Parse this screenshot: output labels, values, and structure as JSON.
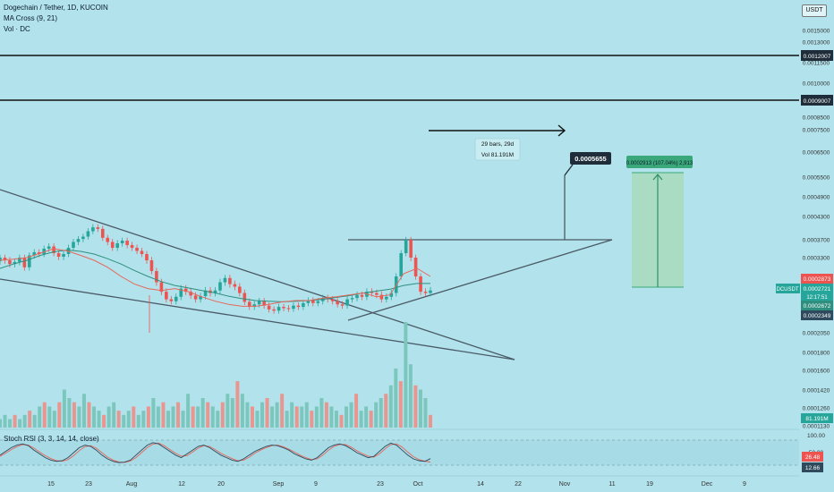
{
  "header": {
    "symbol_line": "Dogechain / Tether, 1D, KUCOIN",
    "ma_line": "MA Cross (9, 21)",
    "vol_line": "Vol · DC"
  },
  "currency": "USDT",
  "stoch_label": "Stoch RSI (3, 3, 14, 14, close)",
  "price_axis": {
    "ticks": [
      "0.0015000",
      "0.0013000",
      "0.0011500",
      "0.0010000",
      "0.0008500",
      "0.0007500",
      "0.0006500",
      "0.0005500",
      "0.0004900",
      "0.0004300",
      "0.0003700",
      "0.0003300",
      "0.0002900",
      "0.0002050",
      "0.0001800",
      "0.0001600",
      "0.0001420",
      "0.0001260",
      "0.0001130"
    ],
    "labels": {
      "level_high": "0.0012007",
      "level_mid": "0.0009007",
      "red_price": "0.0002873",
      "symbol": "DCUSDT",
      "last_price": "0.0002721",
      "countdown": "12:17:51",
      "green_price": "0.0002672",
      "dark_price": "0.0002349",
      "volume": "81.191M"
    }
  },
  "stoch_axis": {
    "ticks": [
      "100.00",
      "50.00"
    ],
    "k_value": "26.48",
    "d_value": "12.66"
  },
  "time_axis": [
    "15",
    "23",
    "Aug",
    "12",
    "20",
    "Sep",
    "9",
    "23",
    "Oct",
    "14",
    "22",
    "Nov",
    "11",
    "19",
    "Dec",
    "9"
  ],
  "annotations": {
    "measure_line1": "29 bars, 29d",
    "measure_line2": "Vol 81.191M",
    "target_label": "0.0005655",
    "projection_label": "0.0002913 (107.04%) 2,913"
  },
  "colors": {
    "background": "#b2e3ec",
    "up": "#26a69a",
    "down": "#ef5350",
    "ma_fast": "#e8665a",
    "ma_slow": "#2e8f7e",
    "line": "#37474f",
    "projection_fill": "#a6d9b8",
    "projection_line": "#3aa87a"
  },
  "chart_data": {
    "type": "candlestick",
    "title": "Dogechain / Tether, 1D, KUCOIN",
    "x_labels": [
      "15",
      "23",
      "Aug",
      "12",
      "20",
      "Sep",
      "9",
      "23",
      "Oct"
    ],
    "close_series": [
      0.00033,
      0.000325,
      0.000318,
      0.000322,
      0.00033,
      0.000312,
      0.000335,
      0.000342,
      0.000338,
      0.00035,
      0.000355,
      0.00034,
      0.000332,
      0.000338,
      0.000352,
      0.000365,
      0.000372,
      0.000378,
      0.000392,
      0.000402,
      0.000398,
      0.000375,
      0.000365,
      0.000352,
      0.000362,
      0.000368,
      0.000358,
      0.000352,
      0.000345,
      0.000338,
      0.000325,
      0.000305,
      0.000285,
      0.00027,
      0.000258,
      0.000255,
      0.000262,
      0.000275,
      0.00027,
      0.000264,
      0.000258,
      0.000263,
      0.000272,
      0.000268,
      0.000272,
      0.000285,
      0.000292,
      0.000282,
      0.000278,
      0.000268,
      0.000254,
      0.000246,
      0.00025,
      0.000255,
      0.000248,
      0.000242,
      0.00024,
      0.000246,
      0.000244,
      0.000243,
      0.000248,
      0.000246,
      0.000252,
      0.000256,
      0.000252,
      0.000255,
      0.00026,
      0.000258,
      0.000255,
      0.00025,
      0.000248,
      0.000258,
      0.00026,
      0.000265,
      0.000262,
      0.00027,
      0.000268,
      0.000265,
      0.000258,
      0.000262,
      0.000268,
      0.000295,
      0.00034,
      0.00037,
      0.00033,
      0.000295,
      0.00027,
      0.000268,
      0.000272
    ],
    "ma_fast": [
      0.000325,
      0.000327,
      0.00033,
      0.00034,
      0.00035,
      0.000345,
      0.000335,
      0.000325,
      0.000312,
      0.000295,
      0.000282,
      0.000275,
      0.000272,
      0.000275,
      0.00027,
      0.000262,
      0.000255,
      0.00025,
      0.000247,
      0.000247,
      0.00025,
      0.000254,
      0.000256,
      0.000256,
      0.00026,
      0.000262,
      0.000265,
      0.000268,
      0.000262,
      0.000265,
      0.0003,
      0.00031,
      0.000295
    ],
    "ma_slow": [
      0.00031,
      0.000318,
      0.000325,
      0.000335,
      0.000343,
      0.000347,
      0.000344,
      0.000338,
      0.000328,
      0.000318,
      0.000306,
      0.000295,
      0.000286,
      0.00028,
      0.000276,
      0.000272,
      0.000268,
      0.000263,
      0.000259,
      0.000256,
      0.000255,
      0.000254,
      0.000255,
      0.000256,
      0.000258,
      0.000261,
      0.000264,
      0.000268,
      0.000271,
      0.000274,
      0.00028,
      0.000283,
      0.000283
    ],
    "volume_series": [
      2,
      3,
      2,
      3,
      2,
      3,
      4,
      3,
      5,
      6,
      5,
      4,
      6,
      9,
      7,
      6,
      5,
      8,
      6,
      5,
      4,
      3,
      5,
      6,
      4,
      3,
      4,
      5,
      3,
      4,
      5,
      7,
      5,
      6,
      4,
      5,
      6,
      4,
      8,
      5,
      5,
      7,
      6,
      5,
      4,
      6,
      8,
      7,
      11,
      8,
      6,
      5,
      4,
      6,
      7,
      5,
      6,
      8,
      4,
      6,
      5,
      5,
      6,
      4,
      5,
      7,
      6,
      5,
      4,
      3,
      5,
      6,
      8,
      4,
      5,
      4,
      6,
      7,
      8,
      10,
      14,
      11,
      25,
      15,
      10,
      9,
      7,
      3
    ],
    "stoch_k": [
      40,
      55,
      70,
      80,
      85,
      78,
      60,
      45,
      30,
      20,
      15,
      18,
      30,
      50,
      70,
      80,
      75,
      60,
      40,
      25,
      15,
      10,
      12,
      20,
      40,
      60,
      80,
      90,
      85,
      70,
      55,
      40,
      30,
      45,
      60,
      75,
      80,
      70,
      55,
      40,
      30,
      20,
      15,
      25,
      40,
      55,
      65,
      75,
      80,
      78,
      70,
      60,
      45,
      35,
      25,
      20,
      30,
      50,
      70,
      80,
      85,
      78,
      65,
      50,
      40,
      30,
      35,
      55,
      75,
      88,
      80,
      60,
      40,
      25,
      18,
      15,
      26
    ],
    "stoch_d": [
      35,
      48,
      62,
      74,
      82,
      80,
      68,
      52,
      38,
      26,
      18,
      16,
      22,
      38,
      58,
      74,
      78,
      68,
      50,
      32,
      20,
      13,
      11,
      16,
      30,
      50,
      70,
      84,
      88,
      78,
      62,
      48,
      36,
      38,
      52,
      68,
      78,
      75,
      62,
      48,
      36,
      26,
      18,
      20,
      32,
      48,
      60,
      70,
      78,
      80,
      74,
      64,
      52,
      40,
      30,
      22,
      25,
      40,
      60,
      75,
      82,
      82,
      72,
      58,
      46,
      36,
      32,
      45,
      65,
      82,
      85,
      72,
      52,
      34,
      22,
      16,
      12.66
    ],
    "horizontal_levels": [
      0.0012007,
      0.0009007
    ],
    "resistance_level": 0.00037,
    "target": 0.0005655,
    "projection": {
      "from": 0.0002721,
      "to": 0.0005634,
      "percent": 107.04
    },
    "last_price": 0.0002721,
    "volume_last": "81.191M",
    "stoch_rsi": {
      "k": 26.48,
      "d": 12.66
    }
  }
}
